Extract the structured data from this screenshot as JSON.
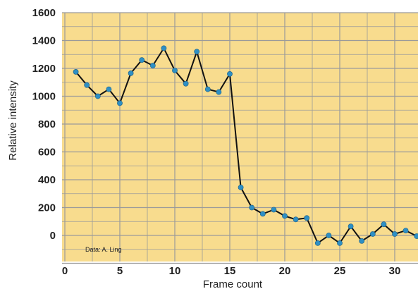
{
  "chart_data": {
    "type": "line",
    "title": "",
    "xlabel": "Frame count",
    "ylabel": "Relative intensity",
    "annotation": "Data: A. Ling",
    "xlim": [
      0,
      32
    ],
    "ylim": [
      -200,
      1600
    ],
    "x_ticks": [
      0,
      5,
      10,
      15,
      20,
      25,
      30
    ],
    "y_ticks": [
      0,
      200,
      400,
      600,
      800,
      1000,
      1200,
      1400,
      1600
    ],
    "grid": true,
    "series": [
      {
        "x": [
          1,
          2,
          3,
          4,
          5,
          6,
          7,
          8,
          9,
          10,
          11,
          12,
          13,
          14,
          15,
          16,
          17,
          18,
          19,
          20,
          21,
          22,
          23,
          24,
          25,
          26,
          27,
          28,
          29,
          30,
          31,
          32
        ],
        "y": [
          1175,
          1080,
          1000,
          1050,
          950,
          1165,
          1260,
          1220,
          1345,
          1185,
          1090,
          1320,
          1050,
          1030,
          1160,
          345,
          200,
          155,
          185,
          140,
          115,
          125,
          -55,
          0,
          -55,
          65,
          -40,
          10,
          80,
          10,
          35,
          -5
        ]
      }
    ],
    "colors": {
      "plot_background": "#f8dc8e",
      "grid": "#9a9a9a",
      "line": "#111111",
      "marker": "#2e8fc4"
    }
  }
}
